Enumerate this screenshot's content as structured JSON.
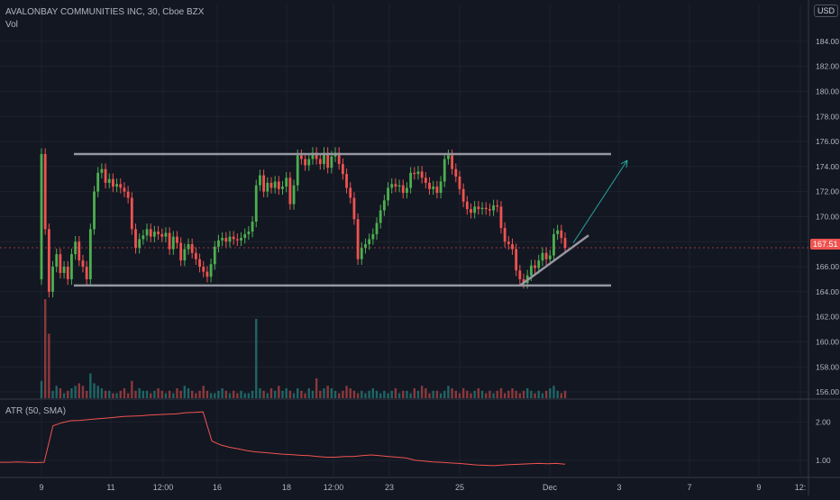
{
  "header": {
    "symbol_line": "AVALONBAY COMMUNITIES INC, 30, Cboe BZX",
    "volume_label": "Vol",
    "currency_button": "USD",
    "last_price_label": "167.51"
  },
  "indicator": {
    "label": "ATR (50, SMA)",
    "color": "#ef5350",
    "ticks": [
      "2.00",
      "1.00"
    ]
  },
  "colors": {
    "background": "#131722",
    "up": "#26a69a",
    "up_candle": "#4caf50",
    "down": "#ef5350",
    "grid": "#1e222d",
    "text": "#b2b5be",
    "drawing": "#9598a1",
    "arrow": "#26a69a"
  },
  "chart_data": [
    {
      "type": "candlestick",
      "x_tick_labels": [
        "9",
        "11",
        "12:00",
        "16",
        "18",
        "12:00",
        "23",
        "25",
        "Dec",
        "3",
        "7",
        "9",
        "12:"
      ],
      "y_tick_labels": [
        "184.00",
        "182.00",
        "180.00",
        "178.00",
        "176.00",
        "174.00",
        "172.00",
        "170.00",
        "168.00",
        "166.00",
        "164.00",
        "162.00",
        "160.00",
        "158.00",
        "156.00"
      ],
      "ylim": [
        155.5,
        185.5
      ],
      "last_price": 167.51,
      "closes": [
        175,
        169,
        164,
        166,
        167,
        165.5,
        166,
        165,
        167,
        168,
        166.5,
        166,
        165,
        169,
        172,
        173.5,
        173.8,
        172.7,
        173,
        172.4,
        172.6,
        172.3,
        172,
        171.5,
        169,
        167.5,
        168.2,
        168.5,
        169,
        168.4,
        168.8,
        168.6,
        168.4,
        168.7,
        167.4,
        168.4,
        167.9,
        166.5,
        167.4,
        167.8,
        167.1,
        166.6,
        166,
        165.6,
        165.2,
        166.2,
        167.6,
        168.1,
        168.3,
        168.0,
        168.4,
        168.2,
        168.1,
        168.3,
        168.6,
        168.8,
        169.6,
        172.5,
        173.3,
        172,
        172.7,
        172.3,
        172.8,
        172.2,
        172.4,
        173.1,
        171,
        172.5,
        174.9,
        174.6,
        174.1,
        174.6,
        175.1,
        174.6,
        174.2,
        175.1,
        173.9,
        174.8,
        175.1,
        174.2,
        173.4,
        172.3,
        171.5,
        169.8,
        166.6,
        167.5,
        167.8,
        168.2,
        168.6,
        169.5,
        170.5,
        171.3,
        172.3,
        172.6,
        172.4,
        172.5,
        171.9,
        172.3,
        173.5,
        173.4,
        173.6,
        173.1,
        172.7,
        172.2,
        172.4,
        171.9,
        172.8,
        174.6,
        174.9,
        173.8,
        173.2,
        172.2,
        171.2,
        170.6,
        170.3,
        170.8,
        170.6,
        170.7,
        170.6,
        170.5,
        170.9,
        170.8,
        169.1,
        168,
        167.8,
        167.4,
        165.7,
        165,
        164.7,
        165.3,
        166.1,
        165.9,
        166.5,
        167.1,
        166.6,
        166.9,
        168.6,
        168.9,
        168.3,
        167.5
      ],
      "volume": [
        7,
        40,
        26,
        3,
        5,
        4,
        2,
        3,
        4,
        5,
        6,
        5,
        3,
        10,
        6,
        5,
        4,
        3,
        3,
        2,
        2,
        3,
        4,
        2,
        7,
        3,
        4,
        3,
        3,
        2,
        3,
        4,
        3,
        2,
        3,
        2,
        4,
        3,
        5,
        4,
        3,
        2,
        3,
        5,
        3,
        2,
        2,
        3,
        4,
        3,
        2,
        3,
        2,
        3,
        2,
        2,
        3,
        32,
        4,
        3,
        2,
        4,
        3,
        5,
        3,
        4,
        3,
        2,
        4,
        3,
        2,
        4,
        3,
        8,
        3,
        4,
        5,
        4,
        3,
        2,
        3,
        5,
        4,
        3,
        2,
        3,
        2,
        3,
        4,
        3,
        2,
        3,
        2,
        3,
        4,
        2,
        3,
        3,
        2,
        4,
        3,
        5,
        4,
        2,
        3,
        3,
        2,
        3,
        5,
        4,
        3,
        2,
        4,
        3,
        2,
        3,
        4,
        3,
        2,
        3,
        2,
        3,
        4,
        2,
        3,
        4,
        3,
        2,
        3,
        4,
        3,
        2,
        3,
        2,
        3,
        4,
        5,
        3,
        2,
        3
      ],
      "drawings": {
        "resistance_line": 175,
        "support_line": 164.5,
        "trend_line_end_price": 168.5,
        "arrow_target_price": 174.5
      }
    },
    {
      "type": "line",
      "name": "ATR (50, SMA)",
      "ylim": [
        0.6,
        2.5
      ],
      "values": [
        0.95,
        0.95,
        0.96,
        0.95,
        0.94,
        0.95,
        1.9,
        1.98,
        2.03,
        2.04,
        2.06,
        2.08,
        2.1,
        2.12,
        2.14,
        2.15,
        2.16,
        2.18,
        2.19,
        2.2,
        2.21,
        2.24,
        2.25,
        2.26,
        1.5,
        1.4,
        1.34,
        1.3,
        1.25,
        1.22,
        1.2,
        1.18,
        1.16,
        1.15,
        1.13,
        1.12,
        1.1,
        1.08,
        1.08,
        1.1,
        1.1,
        1.12,
        1.14,
        1.12,
        1.1,
        1.08,
        1.06,
        1.0,
        0.98,
        0.96,
        0.95,
        0.93,
        0.92,
        0.9,
        0.88,
        0.87,
        0.86,
        0.88,
        0.89,
        0.9,
        0.91,
        0.92,
        0.91,
        0.92,
        0.9
      ]
    }
  ]
}
